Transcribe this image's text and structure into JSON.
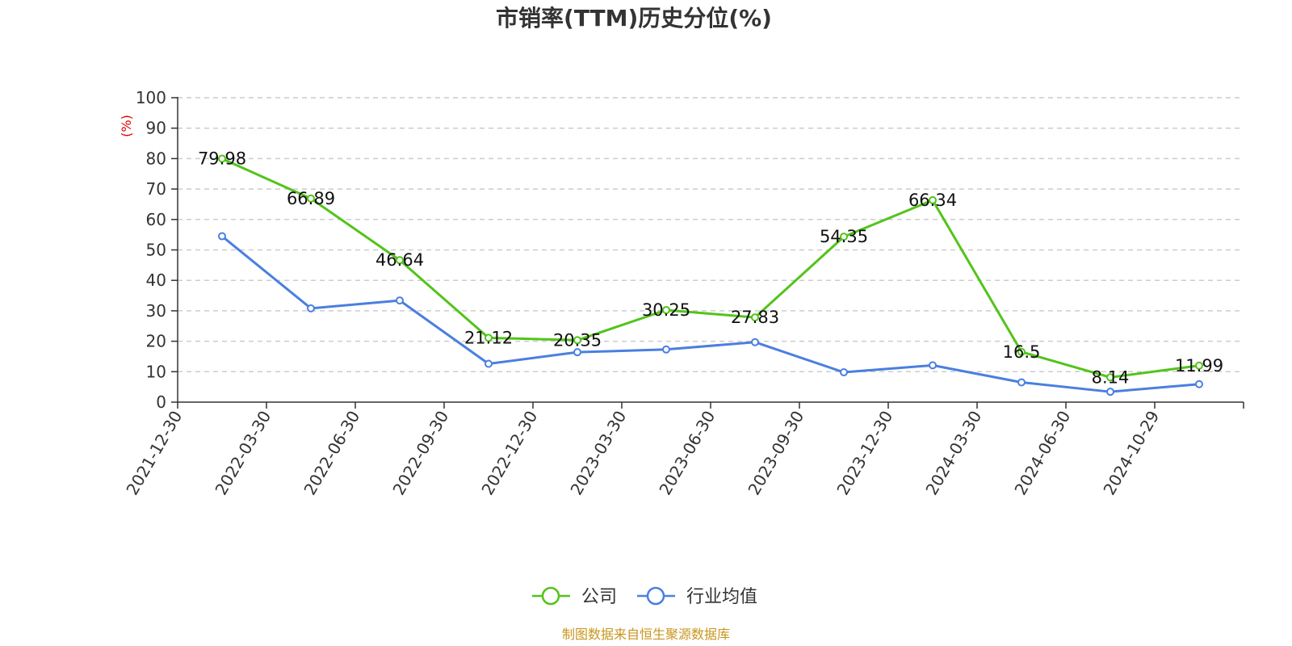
{
  "chart_data": {
    "type": "line",
    "title": "市销率(TTM)历史分位(%)",
    "ylabel": "(%)",
    "ylim": [
      0,
      100
    ],
    "yticks": [
      0,
      10,
      20,
      30,
      40,
      50,
      60,
      70,
      80,
      90,
      100
    ],
    "grid": true,
    "legend_position": "bottom",
    "categories": [
      "2021-12-30",
      "2022-03-30",
      "2022-06-30",
      "2022-09-30",
      "2022-12-30",
      "2023-03-30",
      "2023-06-30",
      "2023-09-30",
      "2023-12-30",
      "2024-03-30",
      "2024-06-30",
      "2024-10-29"
    ],
    "series": [
      {
        "name": "公司",
        "color": "#52c41a",
        "values": [
          79.98,
          66.89,
          46.64,
          21.12,
          20.35,
          30.25,
          27.83,
          54.35,
          66.34,
          16.5,
          8.14,
          11.99
        ],
        "labels": [
          "79.98",
          "66.89",
          "46.64",
          "21.12",
          "20.35",
          "30.25",
          "27.83",
          "54.35",
          "66.34",
          "16.5",
          "8.14",
          "11.99"
        ]
      },
      {
        "name": "行业均值",
        "color": "#4a7fe0",
        "values": [
          54.5,
          30.8,
          33.4,
          12.6,
          16.4,
          17.3,
          19.7,
          9.8,
          12.1,
          6.5,
          3.4,
          5.9
        ]
      }
    ],
    "source": "制图数据来自恒生聚源数据库",
    "source_color": "#c8961e",
    "unit_color": "#e00000"
  }
}
